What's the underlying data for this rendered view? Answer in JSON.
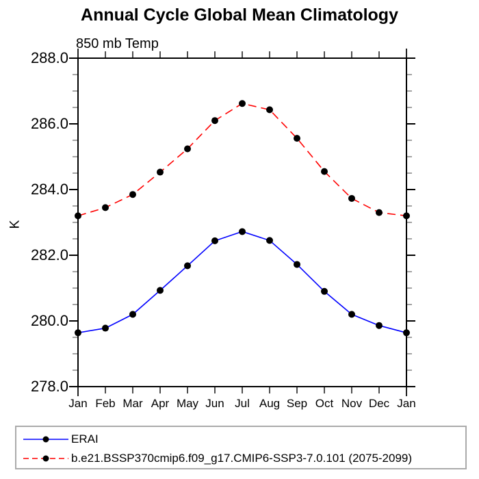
{
  "window": {
    "background": "#ffffff"
  },
  "chart_data": {
    "type": "line",
    "title": "Annual Cycle Global Mean Climatology",
    "subtitle": "850 mb Temp",
    "ylabel": "K",
    "xlabel": "",
    "categories": [
      "Jan",
      "Feb",
      "Mar",
      "Apr",
      "May",
      "Jun",
      "Jul",
      "Aug",
      "Sep",
      "Oct",
      "Nov",
      "Dec",
      "Jan"
    ],
    "ylim": [
      278.0,
      288.0
    ],
    "ytick_major_step": 2.0,
    "ytick_minor_step": 0.5,
    "ytick_labels": [
      "278.0",
      "280.0",
      "282.0",
      "284.0",
      "286.0",
      "288.0"
    ],
    "grid": false,
    "frame": true,
    "tick_direction": "out",
    "legend_position": "bottom-box",
    "marker": {
      "shape": "filled-circle",
      "color": "#000000",
      "radius": 5
    },
    "series": [
      {
        "name": "ERAI",
        "color": "#0000ff",
        "line_style": "solid",
        "values": [
          279.64,
          279.78,
          280.2,
          280.93,
          281.68,
          282.44,
          282.72,
          282.45,
          281.72,
          280.9,
          280.2,
          279.86,
          279.64
        ]
      },
      {
        "name": "b.e21.BSSP370cmip6.f09_g17.CMIP6-SSP3-7.0.101 (2075-2099)",
        "color": "#ff0000",
        "line_style": "dashed",
        "values": [
          283.2,
          283.45,
          283.85,
          284.53,
          285.24,
          286.1,
          286.62,
          286.43,
          285.56,
          284.55,
          283.73,
          283.3,
          283.2
        ]
      }
    ]
  }
}
